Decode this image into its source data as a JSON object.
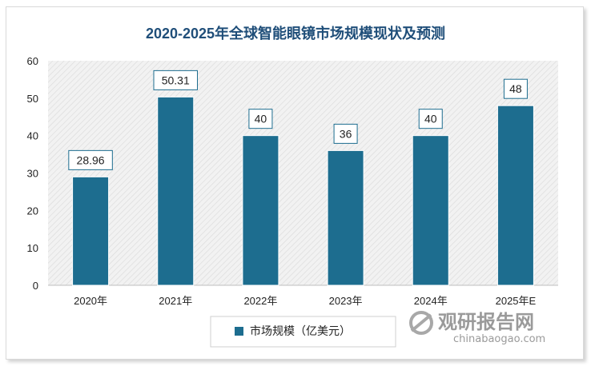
{
  "chart_data": {
    "type": "bar",
    "title": "2020-2025年全球智能眼镜市场规模现状及预测",
    "categories": [
      "2020年",
      "2021年",
      "2022年",
      "2023年",
      "2024年",
      "2025年E"
    ],
    "series": [
      {
        "name": "市场规模（亿美元）",
        "values": [
          28.96,
          50.31,
          40,
          36,
          40,
          48
        ],
        "color": "#1d6d8f"
      }
    ],
    "data_labels": [
      "28.96",
      "50.31",
      "40",
      "36",
      "40",
      "48"
    ],
    "ylim": [
      0,
      60
    ],
    "yticks": [
      0,
      10,
      20,
      30,
      40,
      50,
      60
    ],
    "xlabel": "",
    "ylabel": "",
    "grid": false,
    "plot_background": "hatched-gray",
    "legend_position": "bottom"
  },
  "watermark": {
    "cn": "观研报告网",
    "en": "chinabaogao.com"
  }
}
